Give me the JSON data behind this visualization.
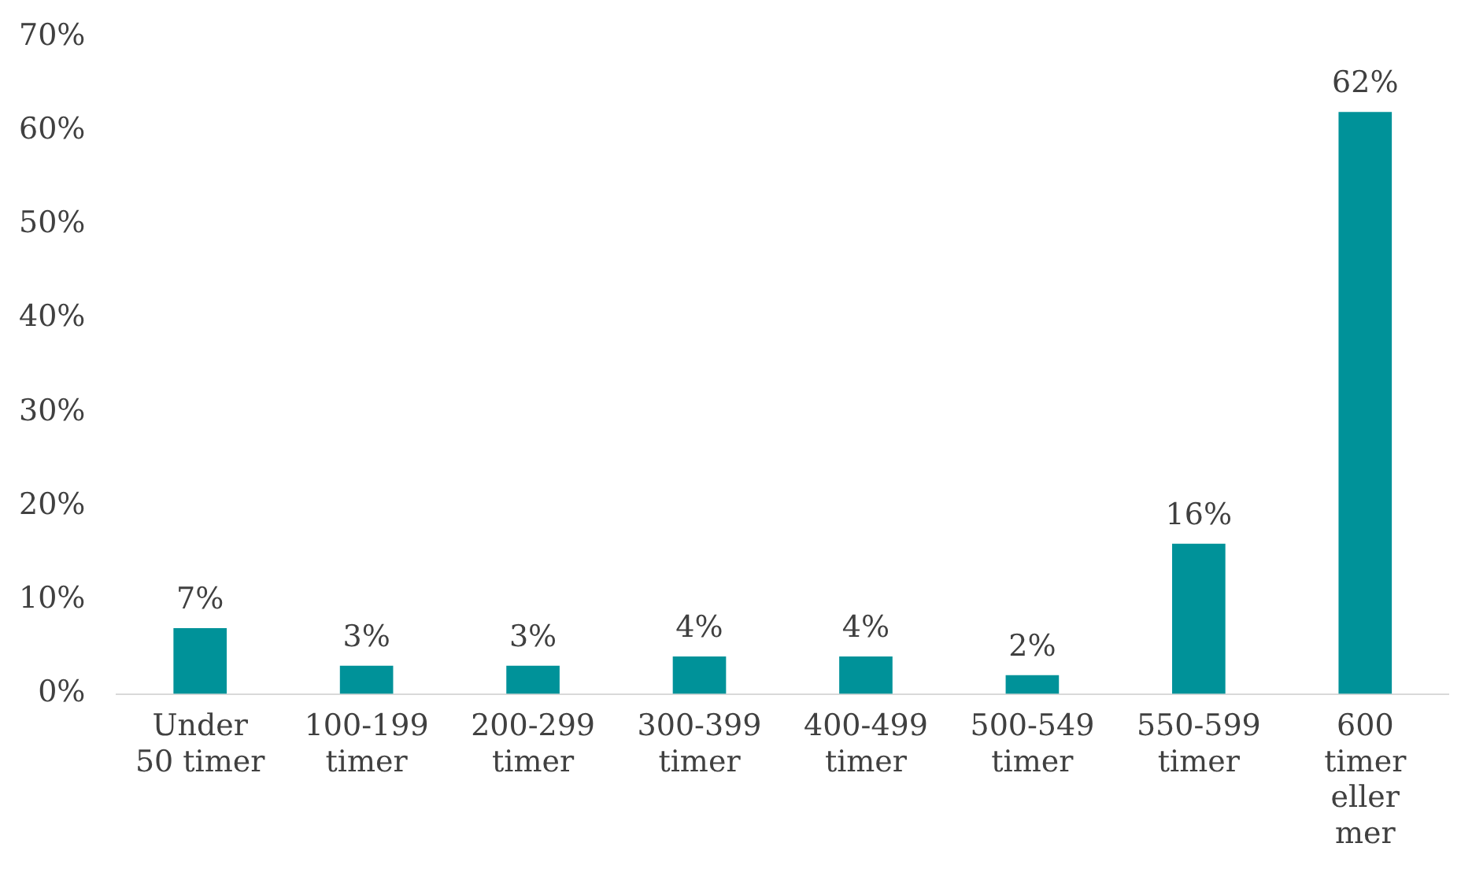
{
  "chart_data": {
    "type": "bar",
    "categories": [
      "Under 50 timer",
      "100-199 timer",
      "200-299 timer",
      "300-399 timer",
      "400-499 timer",
      "500-549 timer",
      "550-599 timer",
      "600 timer eller mer"
    ],
    "values": [
      7,
      3,
      3,
      4,
      4,
      2,
      16,
      62
    ],
    "color": "#009299",
    "value_labels": [
      "7%",
      "3%",
      "3%",
      "4%",
      "4%",
      "2%",
      "16%",
      "62%"
    ],
    "ylim": [
      0,
      70
    ],
    "yticks": [
      {
        "value": 0,
        "label": "0%"
      },
      {
        "value": 10,
        "label": "10%"
      },
      {
        "value": 20,
        "label": "20%"
      },
      {
        "value": 30,
        "label": "30%"
      },
      {
        "value": 40,
        "label": "40%"
      },
      {
        "value": 50,
        "label": "50%"
      },
      {
        "value": 60,
        "label": "60%"
      },
      {
        "value": 70,
        "label": "70%"
      }
    ],
    "grid": false
  }
}
